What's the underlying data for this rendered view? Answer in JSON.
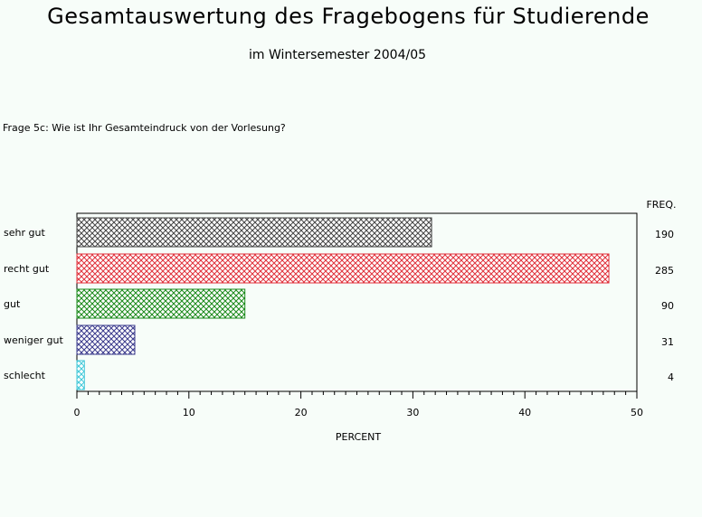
{
  "title": "Gesamtauswertung des Fragebogens für Studierende",
  "subtitle": "im Wintersemester 2004/05",
  "question": "Frage 5c: Wie ist Ihr Gesamteindruck von der Vorlesung?",
  "chart_data": {
    "type": "bar",
    "orientation": "horizontal",
    "categories": [
      "sehr gut",
      "recht gut",
      "gut",
      "weniger gut",
      "schlecht"
    ],
    "values": [
      31.67,
      47.5,
      15.0,
      5.17,
      0.67
    ],
    "freq_header": "FREQ.",
    "freq": [
      "190",
      "285",
      "90",
      "31",
      "4"
    ],
    "xlabel": "PERCENT",
    "xlim": [
      0,
      50
    ],
    "xticks": [
      "0",
      "10",
      "20",
      "30",
      "40",
      "50"
    ],
    "colors": [
      "#444444",
      "#e0303a",
      "#1a8a1a",
      "#3a3a8c",
      "#40c8d8"
    ]
  }
}
